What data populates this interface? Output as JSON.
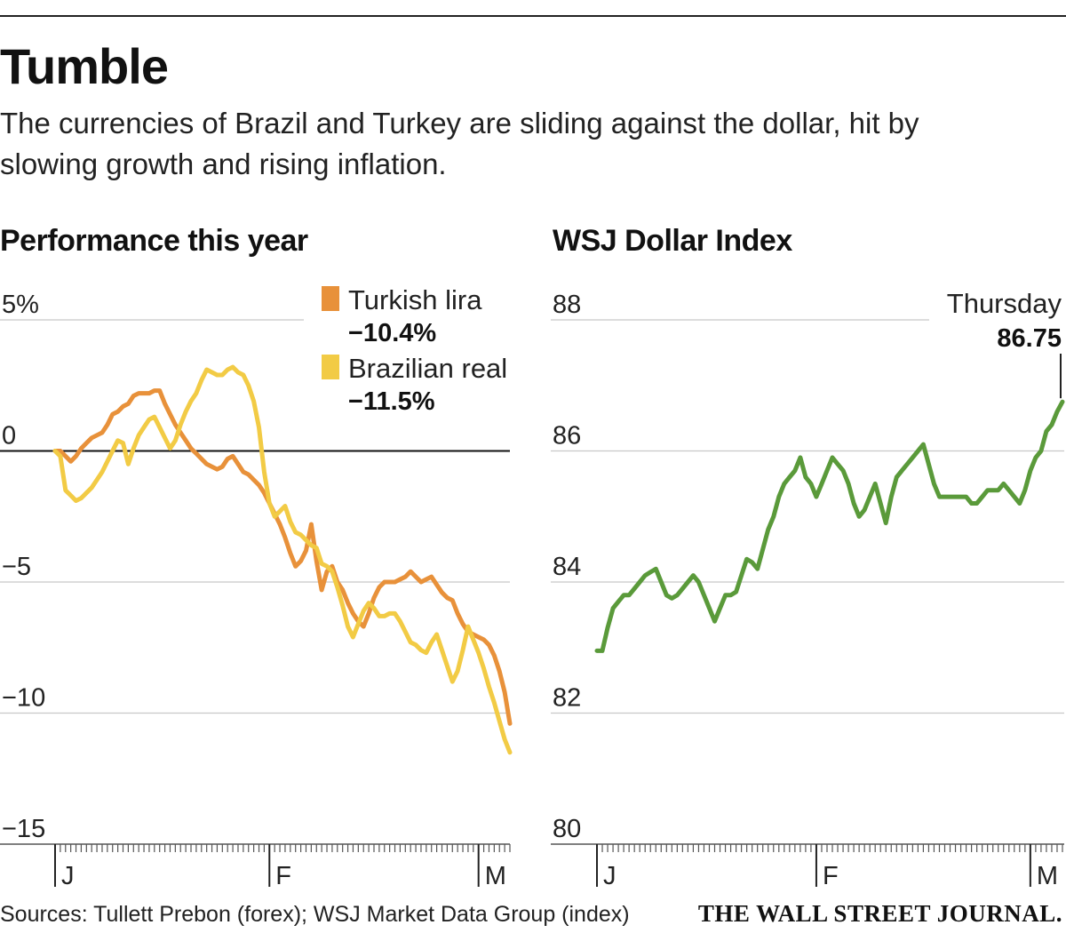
{
  "header": {
    "headline": "Tumble",
    "dek": "The currencies of Brazil and Turkey are sliding against the dollar, hit by slowing growth and rising inflation."
  },
  "footer": {
    "source": "Sources: Tullett Prebon (forex); WSJ Market Data Group (index)",
    "masthead": "THE WALL STREET JOURNAL."
  },
  "colors": {
    "lira": "#e8913a",
    "real": "#f2cb45",
    "index": "#5a9a3a",
    "grid": "#c8c8c8",
    "zero": "#111111"
  },
  "chart_data": [
    {
      "type": "line",
      "title": "Performance this year",
      "ylim": [
        -15,
        5
      ],
      "yticks": [
        5,
        0,
        -5,
        -10,
        -15
      ],
      "ytick_labels": [
        "5%",
        "0",
        "−5",
        "−10",
        "−15"
      ],
      "month_labels": [
        "J",
        "F",
        "M"
      ],
      "month_index": [
        0,
        41,
        81
      ],
      "n_days": 88,
      "legend": [
        {
          "name": "Turkish lira",
          "value": "−10.4%"
        },
        {
          "name": "Brazilian real",
          "value": "−11.5%"
        }
      ],
      "series": [
        {
          "name": "Turkish lira",
          "color": "#e8913a",
          "values": [
            0,
            0,
            -0.2,
            -0.4,
            -0.2,
            0.1,
            0.3,
            0.5,
            0.6,
            0.7,
            1.0,
            1.4,
            1.5,
            1.7,
            1.8,
            2.1,
            2.2,
            2.2,
            2.2,
            2.3,
            2.3,
            1.8,
            1.4,
            1.0,
            0.7,
            0.4,
            0.1,
            -0.1,
            -0.3,
            -0.5,
            -0.6,
            -0.7,
            -0.6,
            -0.3,
            -0.2,
            -0.5,
            -0.8,
            -0.9,
            -1.1,
            -1.3,
            -1.6,
            -2.0,
            -2.4,
            -2.8,
            -3.3,
            -3.9,
            -4.4,
            -4.2,
            -3.8,
            -2.8,
            -4.2,
            -5.3,
            -4.6,
            -4.4,
            -5.0,
            -5.3,
            -5.8,
            -6.2,
            -6.5,
            -6.7,
            -6.2,
            -5.6,
            -5.2,
            -5.0,
            -5.0,
            -5.0,
            -4.9,
            -4.8,
            -4.6,
            -4.8,
            -5.0,
            -4.9,
            -4.8,
            -5.1,
            -5.4,
            -5.6,
            -5.7,
            -6.2,
            -6.6,
            -6.9,
            -7.0,
            -7.1,
            -7.2,
            -7.4,
            -7.8,
            -8.4,
            -9.2,
            -10.4
          ]
        },
        {
          "name": "Brazilian real",
          "color": "#f2cb45",
          "values": [
            0,
            -0.2,
            -1.5,
            -1.7,
            -1.9,
            -1.8,
            -1.6,
            -1.4,
            -1.1,
            -0.8,
            -0.4,
            0,
            0.4,
            0.3,
            -0.5,
            0.1,
            0.6,
            0.9,
            1.2,
            1.3,
            0.9,
            0.5,
            0.1,
            0.4,
            1.0,
            1.5,
            1.9,
            2.2,
            2.7,
            3.1,
            3.0,
            2.9,
            2.9,
            3.1,
            3.2,
            3.0,
            2.9,
            2.5,
            1.9,
            0.9,
            -0.8,
            -2.0,
            -2.5,
            -2.3,
            -2.1,
            -2.7,
            -3.1,
            -3.2,
            -3.4,
            -3.6,
            -3.7,
            -4.3,
            -4.4,
            -4.6,
            -5.2,
            -5.9,
            -6.7,
            -7.1,
            -6.6,
            -6.1,
            -5.8,
            -6.0,
            -6.3,
            -6.3,
            -6.2,
            -6.2,
            -6.5,
            -6.9,
            -7.3,
            -7.4,
            -7.6,
            -7.7,
            -7.3,
            -7.0,
            -7.6,
            -8.2,
            -8.8,
            -8.4,
            -7.6,
            -6.7,
            -7.2,
            -7.7,
            -8.3,
            -9.0,
            -9.6,
            -10.3,
            -11.0,
            -11.5
          ]
        }
      ]
    },
    {
      "type": "line",
      "title": "WSJ Dollar Index",
      "ylim": [
        80,
        88
      ],
      "yticks": [
        88,
        86,
        84,
        82,
        80
      ],
      "ytick_labels": [
        "88",
        "86",
        "84",
        "82",
        "80"
      ],
      "month_labels": [
        "J",
        "F",
        "M"
      ],
      "month_index": [
        0,
        41,
        81
      ],
      "n_days": 88,
      "annotation": {
        "label": "Thursday",
        "value": "86.75",
        "y": 86.75
      },
      "series": [
        {
          "name": "WSJ Dollar Index",
          "color": "#5a9a3a",
          "values": [
            82.95,
            82.95,
            83.3,
            83.6,
            83.7,
            83.8,
            83.8,
            83.9,
            84.0,
            84.1,
            84.15,
            84.2,
            84.0,
            83.8,
            83.75,
            83.8,
            83.9,
            84.0,
            84.1,
            84.0,
            83.8,
            83.6,
            83.4,
            83.6,
            83.8,
            83.8,
            83.85,
            84.1,
            84.35,
            84.3,
            84.2,
            84.5,
            84.8,
            85.0,
            85.3,
            85.5,
            85.6,
            85.7,
            85.9,
            85.6,
            85.5,
            85.3,
            85.5,
            85.7,
            85.9,
            85.8,
            85.7,
            85.5,
            85.2,
            85.0,
            85.1,
            85.3,
            85.5,
            85.2,
            84.9,
            85.3,
            85.6,
            85.7,
            85.8,
            85.9,
            86.0,
            86.1,
            85.8,
            85.5,
            85.3,
            85.3,
            85.3,
            85.3,
            85.3,
            85.3,
            85.2,
            85.2,
            85.3,
            85.4,
            85.4,
            85.4,
            85.5,
            85.4,
            85.3,
            85.2,
            85.4,
            85.7,
            85.9,
            86.0,
            86.3,
            86.4,
            86.6,
            86.75
          ]
        }
      ]
    }
  ]
}
